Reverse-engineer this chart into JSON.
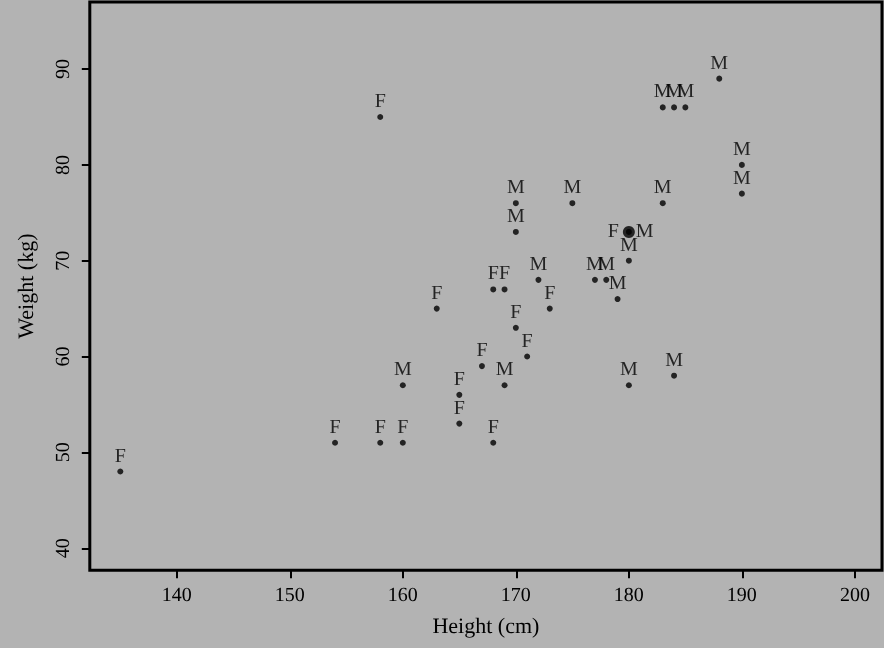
{
  "chart_data": {
    "type": "scatter",
    "xlabel": "Height (cm)",
    "ylabel": "Weight (kg)",
    "xlim": [
      132.3,
      202.4
    ],
    "ylim": [
      37.7,
      97
    ],
    "xticks": [
      140,
      150,
      160,
      170,
      180,
      190,
      200
    ],
    "yticks": [
      40,
      50,
      60,
      70,
      80,
      90
    ],
    "grid": false,
    "legend": false,
    "series": [
      {
        "name": "F",
        "color": "#000000",
        "x": [
          158,
          180,
          168,
          169,
          163,
          173,
          170,
          171,
          167,
          165,
          165,
          154,
          158,
          160,
          168,
          135
        ],
        "values": [
          85,
          73,
          67,
          67,
          65,
          65,
          63,
          60,
          59,
          56,
          53,
          51,
          51,
          51,
          51,
          48
        ]
      },
      {
        "name": "M",
        "color": "#000000",
        "x": [
          188,
          183,
          184,
          185,
          190,
          190,
          170,
          175,
          183,
          170,
          180,
          180,
          172,
          177,
          178,
          179,
          160,
          169,
          180,
          184
        ],
        "values": [
          89,
          86,
          86,
          86,
          80,
          77,
          76,
          76,
          76,
          73,
          73,
          70,
          68,
          68,
          68,
          66,
          57,
          57,
          57,
          58
        ]
      }
    ]
  }
}
